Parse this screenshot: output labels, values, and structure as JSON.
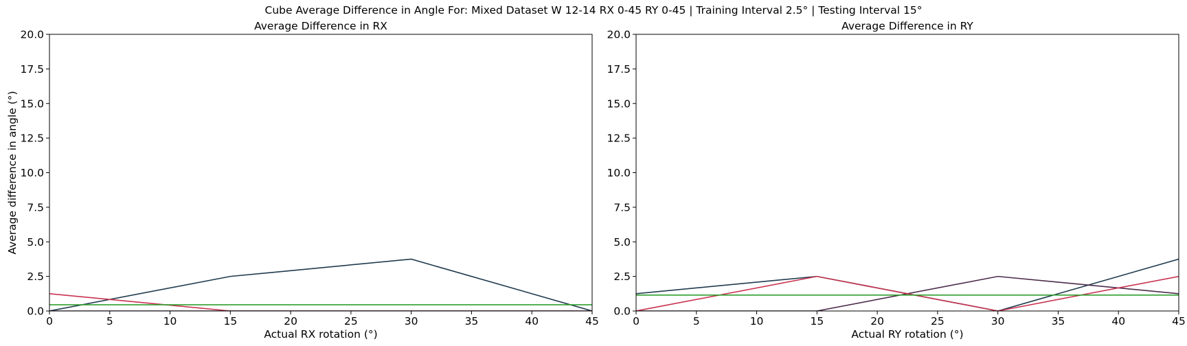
{
  "suptitle": "Cube Average Difference in Angle For: Mixed Dataset W 12-14 RX 0-45 RY 0-45 | Training Interval 2.5° | Testing Interval 15°",
  "chart_data": [
    {
      "type": "line",
      "title": "Average Difference in RX",
      "xlabel": "Actual RX rotation (°)",
      "ylabel": "Average difference in angle (°)",
      "xlim": [
        0,
        45
      ],
      "ylim": [
        0,
        20
      ],
      "xticks": [
        "0",
        "5",
        "10",
        "15",
        "20",
        "25",
        "30",
        "35",
        "40",
        "45"
      ],
      "yticks": [
        "0.0",
        "2.5",
        "5.0",
        "7.5",
        "10.0",
        "12.5",
        "15.0",
        "17.5",
        "20.0"
      ],
      "grid": false,
      "series": [
        {
          "color": "#1f3a4d",
          "x": [
            0,
            15,
            30,
            45
          ],
          "values": [
            0,
            2.5,
            3.75,
            0
          ]
        },
        {
          "color": "#c8324f",
          "x": [
            0,
            15,
            30,
            45
          ],
          "values": [
            1.25,
            0,
            0,
            0
          ]
        },
        {
          "color": "#4a2a4a",
          "x": [
            0,
            15,
            30,
            45
          ],
          "values": [
            0,
            0,
            0,
            0
          ]
        },
        {
          "color": "#2e9e2e",
          "x": [
            0,
            45
          ],
          "values": [
            0.45,
            0.45
          ]
        }
      ]
    },
    {
      "type": "line",
      "title": "Average Difference in RY",
      "xlabel": "Actual RY rotation (°)",
      "ylabel": "",
      "xlim": [
        0,
        45
      ],
      "ylim": [
        0,
        20
      ],
      "xticks": [
        "0",
        "5",
        "10",
        "15",
        "20",
        "25",
        "30",
        "35",
        "40",
        "45"
      ],
      "yticks": [
        "0.0",
        "2.5",
        "5.0",
        "7.5",
        "10.0",
        "12.5",
        "15.0",
        "17.5",
        "20.0"
      ],
      "grid": false,
      "series": [
        {
          "color": "#1f3a4d",
          "x": [
            0,
            15,
            30,
            45
          ],
          "values": [
            1.25,
            2.5,
            0,
            3.75
          ]
        },
        {
          "color": "#4a2a4a",
          "x": [
            0,
            15,
            30,
            45
          ],
          "values": [
            0,
            0,
            2.5,
            1.25
          ]
        },
        {
          "color": "#c8324f",
          "x": [
            0,
            15,
            30,
            45
          ],
          "values": [
            0,
            2.5,
            0,
            2.5
          ]
        },
        {
          "color": "#2e9e2e",
          "x": [
            0,
            45
          ],
          "values": [
            1.15,
            1.15
          ]
        }
      ]
    }
  ]
}
